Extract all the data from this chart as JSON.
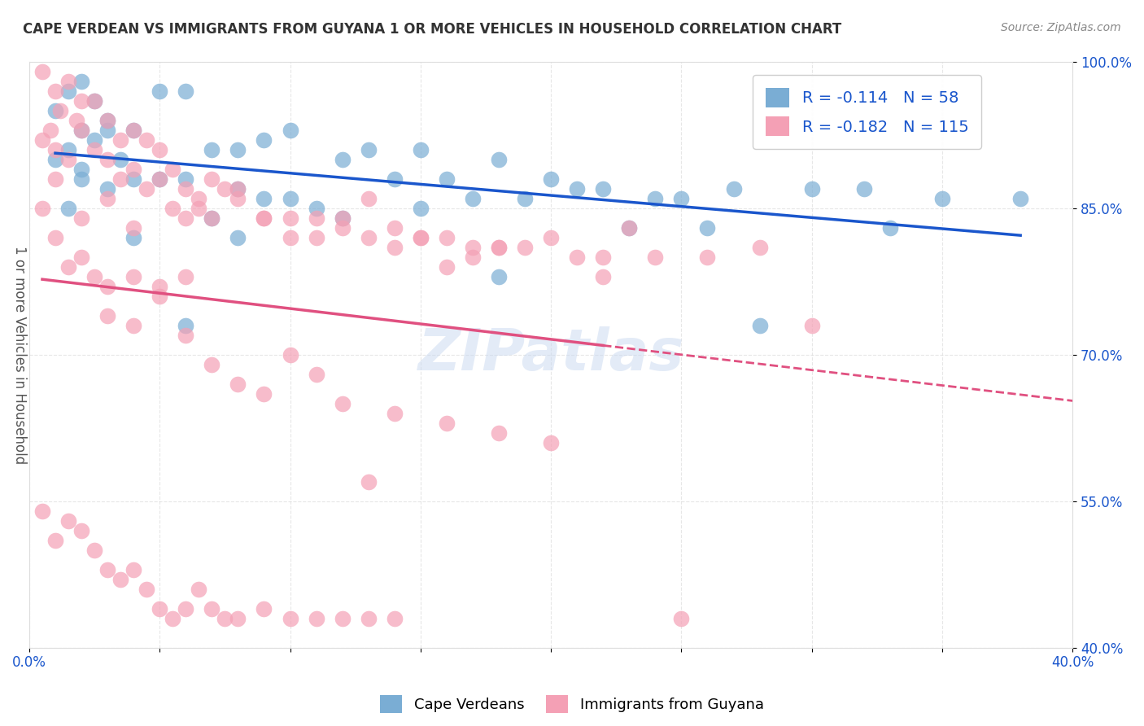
{
  "title": "CAPE VERDEAN VS IMMIGRANTS FROM GUYANA 1 OR MORE VEHICLES IN HOUSEHOLD CORRELATION CHART",
  "source": "Source: ZipAtlas.com",
  "ylabel": "1 or more Vehicles in Household",
  "xlabel": "",
  "xlim": [
    0.0,
    0.4
  ],
  "ylim": [
    0.4,
    1.0
  ],
  "yticks": [
    0.4,
    0.55,
    0.7,
    0.85,
    1.0
  ],
  "ytick_labels": [
    "40.0%",
    "55.0%",
    "70.0%",
    "85.0%",
    "100.0%"
  ],
  "xticks": [
    0.0,
    0.05,
    0.1,
    0.15,
    0.2,
    0.25,
    0.3,
    0.35,
    0.4
  ],
  "xtick_labels": [
    "0.0%",
    "",
    "",
    "",
    "",
    "",
    "",
    "",
    "40.0%"
  ],
  "blue_R": -0.114,
  "blue_N": 58,
  "pink_R": -0.182,
  "pink_N": 115,
  "blue_color": "#7aadd4",
  "pink_color": "#f4a0b5",
  "blue_line_color": "#1a56cc",
  "pink_line_color": "#e05080",
  "legend_text_color": "#1a56cc",
  "axis_label_color": "#555555",
  "tick_color": "#1a56cc",
  "grid_color": "#dddddd",
  "background_color": "#ffffff",
  "watermark": "ZIPatlas",
  "blue_scatter_x": [
    0.02,
    0.01,
    0.03,
    0.015,
    0.025,
    0.01,
    0.04,
    0.02,
    0.05,
    0.015,
    0.03,
    0.02,
    0.06,
    0.025,
    0.035,
    0.04,
    0.05,
    0.07,
    0.08,
    0.09,
    0.1,
    0.12,
    0.13,
    0.14,
    0.15,
    0.11,
    0.16,
    0.18,
    0.2,
    0.22,
    0.24,
    0.17,
    0.19,
    0.06,
    0.07,
    0.08,
    0.09,
    0.1,
    0.25,
    0.27,
    0.3,
    0.32,
    0.35,
    0.28,
    0.015,
    0.02,
    0.03,
    0.04,
    0.06,
    0.08,
    0.12,
    0.15,
    0.18,
    0.21,
    0.38,
    0.23,
    0.26,
    0.33
  ],
  "blue_scatter_y": [
    0.98,
    0.95,
    0.93,
    0.91,
    0.96,
    0.9,
    0.88,
    0.93,
    0.97,
    0.97,
    0.94,
    0.88,
    0.97,
    0.92,
    0.9,
    0.93,
    0.88,
    0.91,
    0.91,
    0.92,
    0.93,
    0.9,
    0.91,
    0.88,
    0.91,
    0.85,
    0.88,
    0.9,
    0.88,
    0.87,
    0.86,
    0.86,
    0.86,
    0.88,
    0.84,
    0.87,
    0.86,
    0.86,
    0.86,
    0.87,
    0.87,
    0.87,
    0.86,
    0.73,
    0.85,
    0.89,
    0.87,
    0.82,
    0.73,
    0.82,
    0.84,
    0.85,
    0.78,
    0.87,
    0.86,
    0.83,
    0.83,
    0.83
  ],
  "pink_scatter_x": [
    0.005,
    0.01,
    0.015,
    0.02,
    0.008,
    0.012,
    0.018,
    0.025,
    0.005,
    0.01,
    0.015,
    0.02,
    0.025,
    0.03,
    0.035,
    0.04,
    0.045,
    0.05,
    0.03,
    0.035,
    0.04,
    0.045,
    0.05,
    0.055,
    0.06,
    0.065,
    0.07,
    0.075,
    0.08,
    0.055,
    0.06,
    0.065,
    0.07,
    0.08,
    0.09,
    0.1,
    0.11,
    0.12,
    0.13,
    0.14,
    0.09,
    0.1,
    0.11,
    0.12,
    0.13,
    0.14,
    0.15,
    0.16,
    0.17,
    0.18,
    0.19,
    0.2,
    0.21,
    0.22,
    0.15,
    0.16,
    0.17,
    0.18,
    0.22,
    0.24,
    0.26,
    0.28,
    0.01,
    0.02,
    0.03,
    0.04,
    0.005,
    0.01,
    0.015,
    0.02,
    0.025,
    0.03,
    0.04,
    0.05,
    0.06,
    0.03,
    0.04,
    0.05,
    0.13,
    0.06,
    0.07,
    0.08,
    0.09,
    0.1,
    0.11,
    0.12,
    0.14,
    0.16,
    0.18,
    0.2,
    0.23,
    0.005,
    0.01,
    0.015,
    0.02,
    0.025,
    0.03,
    0.035,
    0.04,
    0.045,
    0.05,
    0.055,
    0.06,
    0.065,
    0.07,
    0.075,
    0.08,
    0.09,
    0.1,
    0.11,
    0.12,
    0.13,
    0.14,
    0.25,
    0.3
  ],
  "pink_scatter_y": [
    0.99,
    0.97,
    0.98,
    0.96,
    0.93,
    0.95,
    0.94,
    0.96,
    0.92,
    0.91,
    0.9,
    0.93,
    0.91,
    0.94,
    0.92,
    0.93,
    0.92,
    0.91,
    0.9,
    0.88,
    0.89,
    0.87,
    0.88,
    0.89,
    0.87,
    0.86,
    0.88,
    0.87,
    0.86,
    0.85,
    0.84,
    0.85,
    0.84,
    0.87,
    0.84,
    0.84,
    0.84,
    0.84,
    0.86,
    0.83,
    0.84,
    0.82,
    0.82,
    0.83,
    0.82,
    0.81,
    0.82,
    0.82,
    0.81,
    0.81,
    0.81,
    0.82,
    0.8,
    0.8,
    0.82,
    0.79,
    0.8,
    0.81,
    0.78,
    0.8,
    0.8,
    0.81,
    0.88,
    0.84,
    0.86,
    0.83,
    0.85,
    0.82,
    0.79,
    0.8,
    0.78,
    0.77,
    0.78,
    0.77,
    0.78,
    0.74,
    0.73,
    0.76,
    0.57,
    0.72,
    0.69,
    0.67,
    0.66,
    0.7,
    0.68,
    0.65,
    0.64,
    0.63,
    0.62,
    0.61,
    0.83,
    0.54,
    0.51,
    0.53,
    0.52,
    0.5,
    0.48,
    0.47,
    0.48,
    0.46,
    0.44,
    0.43,
    0.44,
    0.46,
    0.44,
    0.43,
    0.43,
    0.44,
    0.43,
    0.43,
    0.43,
    0.43,
    0.43,
    0.43,
    0.73
  ]
}
